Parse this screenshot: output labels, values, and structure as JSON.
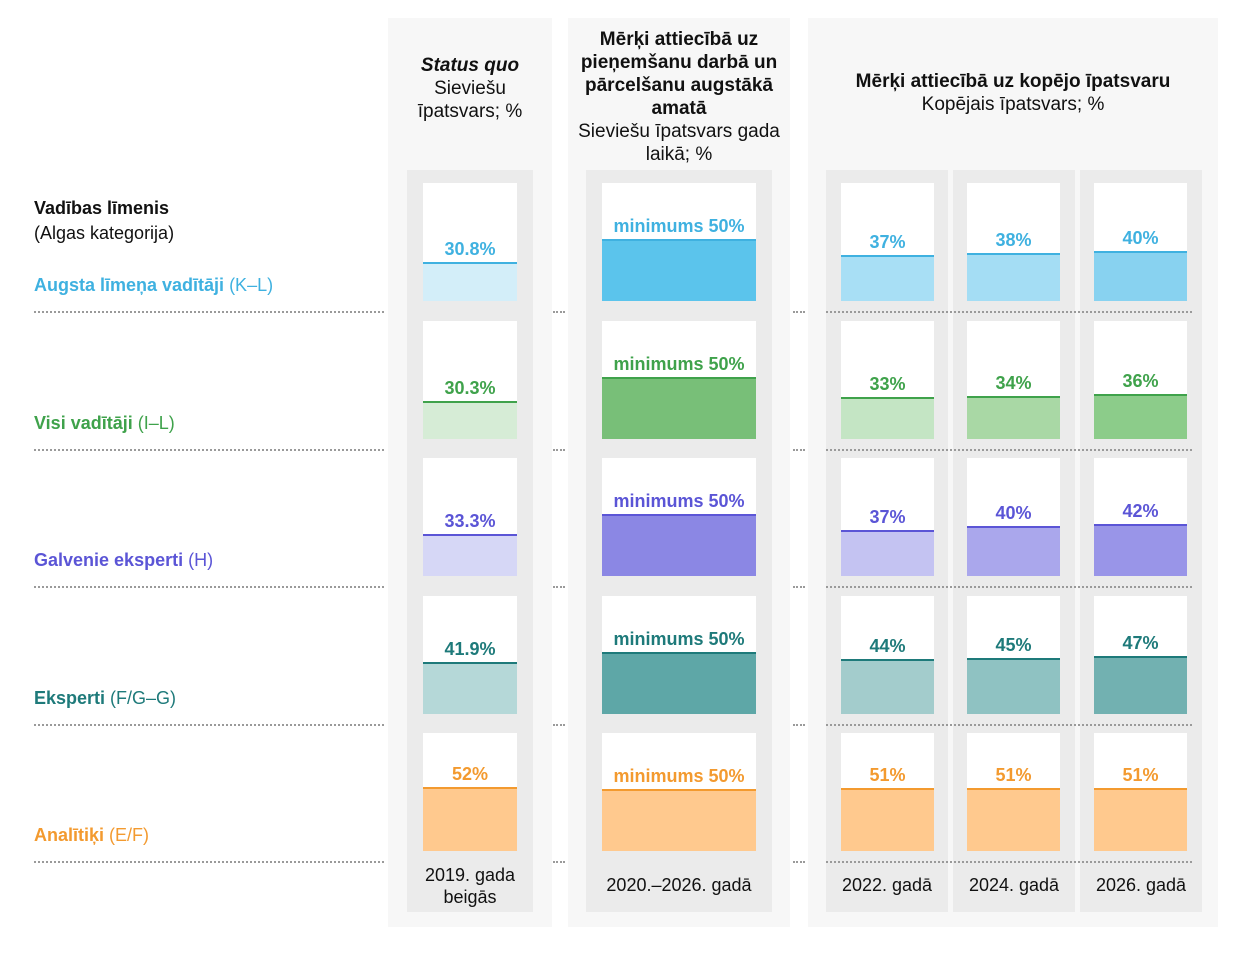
{
  "chart_data": {
    "type": "bar",
    "title_left": "Vadības līmenis",
    "subtitle_left": "(Algas kategorija)",
    "rows": [
      {
        "name": "Augsta līmeņa vadītāji",
        "code": "(K–L)",
        "color": "#3fb1e0",
        "light": "#d3eef9",
        "targetFill": "#5bc4ec",
        "status": {
          "label": "30.8%",
          "value": 30.8
        },
        "target": {
          "label": "minimums 50%",
          "value": 50
        },
        "years": [
          {
            "label": "37%",
            "value": 37,
            "fill": "#a8dff5"
          },
          {
            "label": "38%",
            "value": 38,
            "fill": "#a4ddf4"
          },
          {
            "label": "40%",
            "value": 40,
            "fill": "#88d2f0"
          }
        ]
      },
      {
        "name": "Visi vadītāji",
        "code": "(I–L)",
        "color": "#3fa24b",
        "light": "#d6ecd6",
        "targetFill": "#78bf78",
        "status": {
          "label": "30.3%",
          "value": 30.3
        },
        "target": {
          "label": "minimums 50%",
          "value": 50
        },
        "years": [
          {
            "label": "33%",
            "value": 33,
            "fill": "#c4e5c4"
          },
          {
            "label": "34%",
            "value": 34,
            "fill": "#a9d8a5"
          },
          {
            "label": "36%",
            "value": 36,
            "fill": "#8ccc8a"
          }
        ]
      },
      {
        "name": "Galvenie eksperti",
        "code": "(H)",
        "color": "#5b55d6",
        "light": "#d6d7f6",
        "targetFill": "#8b87e4",
        "status": {
          "label": "33.3%",
          "value": 33.3
        },
        "target": {
          "label": "minimums 50%",
          "value": 50
        },
        "years": [
          {
            "label": "37%",
            "value": 37,
            "fill": "#c4c3f2"
          },
          {
            "label": "40%",
            "value": 40,
            "fill": "#aaa7ec"
          },
          {
            "label": "42%",
            "value": 42,
            "fill": "#9995e8"
          }
        ]
      },
      {
        "name": "Eksperti",
        "code": "(F/G–G)",
        "color": "#1e7a7a",
        "light": "#b5d8d8",
        "targetFill": "#5ea7a7",
        "status": {
          "label": "41.9%",
          "value": 41.9
        },
        "target": {
          "label": "minimums 50%",
          "value": 50
        },
        "years": [
          {
            "label": "44%",
            "value": 44,
            "fill": "#a3cccc"
          },
          {
            "label": "45%",
            "value": 45,
            "fill": "#8fc2c2"
          },
          {
            "label": "47%",
            "value": 47,
            "fill": "#72b1b1"
          }
        ]
      },
      {
        "name": "Analītiķi",
        "code": "(E/F)",
        "color": "#f39a2f",
        "light": "#ffc98e",
        "targetFill": "#ffc98e",
        "status": {
          "label": "52%",
          "value": 52
        },
        "target": {
          "label": "minimums 50%",
          "value": 50
        },
        "years": [
          {
            "label": "51%",
            "value": 51,
            "fill": "#ffc98e"
          },
          {
            "label": "51%",
            "value": 51,
            "fill": "#ffc98e"
          },
          {
            "label": "51%",
            "value": 51,
            "fill": "#ffc98e"
          }
        ]
      }
    ],
    "headers": {
      "status": {
        "title": "Status quo",
        "sub": "Sieviešu īpatsvars; %"
      },
      "target": {
        "title": "Mērķi attiecībā uz pieņemšanu darbā un pārcelšanu augstākā amatā",
        "sub": "Sieviešu īpatsvars gada laikā; %"
      },
      "years": {
        "title": "Mērķi attiecībā uz kopējo īpatsvaru",
        "sub": "Kopējais īpatsvars; %"
      }
    },
    "footers": {
      "status": "2019. gada beigās",
      "target": "2020.–2026. gadā",
      "years": [
        "2022. gadā",
        "2024. gadā",
        "2026. gadā"
      ]
    },
    "ylim": [
      0,
      100
    ]
  }
}
